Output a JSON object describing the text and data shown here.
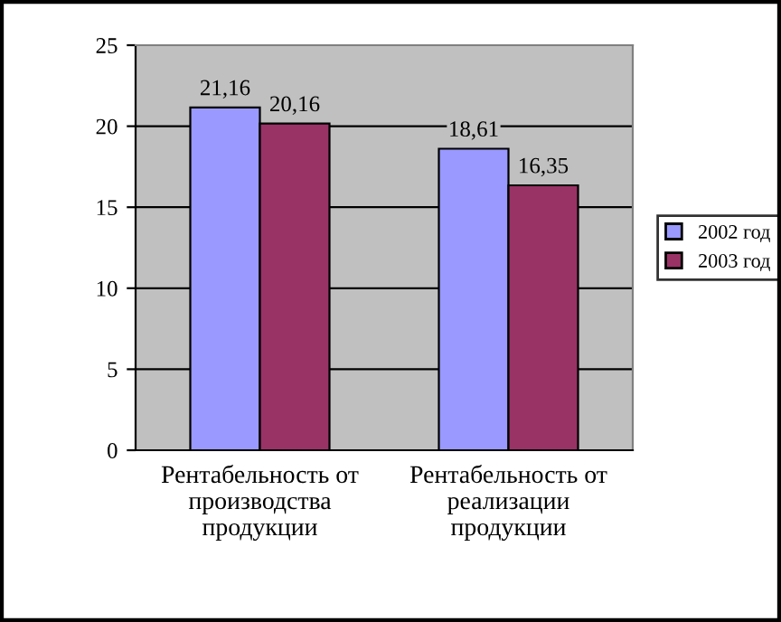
{
  "chart_data": {
    "type": "bar",
    "categories": [
      "Рентабельность от\nпроизводства\nпродукции",
      "Рентабельность от\nреализации\nпродукции"
    ],
    "series": [
      {
        "name": "2002 год",
        "color": "#9999ff",
        "values": [
          21.16,
          18.61
        ],
        "value_labels": [
          "21,16",
          "18,61"
        ]
      },
      {
        "name": "2003 год",
        "color": "#993366",
        "values": [
          20.16,
          16.35
        ],
        "value_labels": [
          "20,16",
          "16,35"
        ]
      }
    ],
    "ylim": [
      0,
      25
    ],
    "yticks": [
      0,
      5,
      10,
      15,
      20,
      25
    ],
    "grid": "y",
    "legend": "right"
  }
}
